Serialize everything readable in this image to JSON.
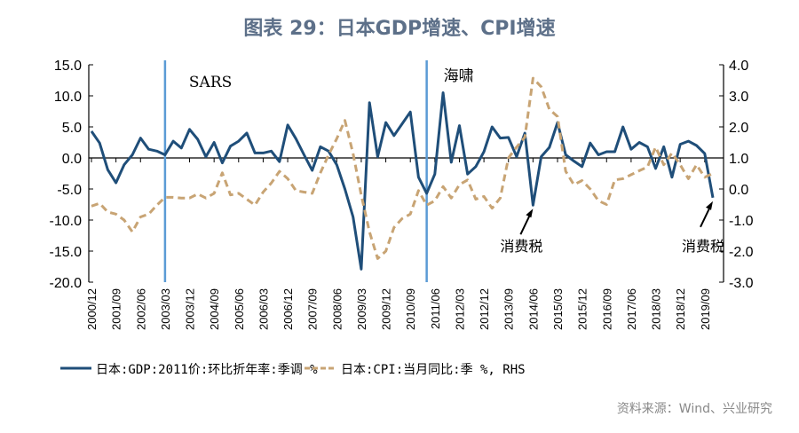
{
  "title": "图表 29：日本GDP增速、CPI增速",
  "source": "资料来源：Wind、兴业研究",
  "chart_data": {
    "type": "line",
    "categories": [
      "2000/12",
      "2001/03",
      "2001/06",
      "2001/09",
      "2001/12",
      "2002/03",
      "2002/06",
      "2002/09",
      "2002/12",
      "2003/03",
      "2003/06",
      "2003/09",
      "2003/12",
      "2004/03",
      "2004/06",
      "2004/09",
      "2004/12",
      "2005/03",
      "2005/06",
      "2005/09",
      "2005/12",
      "2006/03",
      "2006/06",
      "2006/09",
      "2006/12",
      "2007/03",
      "2007/06",
      "2007/09",
      "2007/12",
      "2008/03",
      "2008/06",
      "2008/09",
      "2008/12",
      "2009/03",
      "2009/06",
      "2009/09",
      "2009/12",
      "2010/03",
      "2010/06",
      "2010/09",
      "2010/12",
      "2011/03",
      "2011/06",
      "2011/09",
      "2011/12",
      "2012/03",
      "2012/06",
      "2012/09",
      "2012/12",
      "2013/03",
      "2013/06",
      "2013/09",
      "2013/12",
      "2014/03",
      "2014/06",
      "2014/09",
      "2014/12",
      "2015/03",
      "2015/06",
      "2015/09",
      "2015/12",
      "2016/03",
      "2016/06",
      "2016/09",
      "2016/12",
      "2017/03",
      "2017/06",
      "2017/09",
      "2017/12",
      "2018/03",
      "2018/06",
      "2018/09",
      "2018/12",
      "2019/03",
      "2019/06",
      "2019/09",
      "2019/12"
    ],
    "tick_every": 3,
    "series": [
      {
        "name": "日本:GDP:2011价:环比折年率:季调 %",
        "axis": "left",
        "color": "#1f4e79",
        "style": "solid",
        "values": [
          4.3,
          2.4,
          -1.9,
          -4.0,
          -1.1,
          0.5,
          3.2,
          1.4,
          1.1,
          0.5,
          2.7,
          1.6,
          4.6,
          3.0,
          0.2,
          2.5,
          -0.8,
          1.9,
          2.7,
          4.0,
          0.8,
          0.8,
          1.1,
          -0.6,
          5.3,
          3.1,
          0.5,
          -2.0,
          1.8,
          1.1,
          -1.1,
          -5.0,
          -9.5,
          -17.9,
          8.9,
          0.2,
          5.7,
          3.6,
          5.5,
          7.4,
          -3.1,
          -5.7,
          -2.6,
          10.5,
          -0.7,
          5.2,
          -2.6,
          -1.4,
          1.0,
          5.0,
          3.2,
          3.3,
          0.2,
          4.0,
          -7.6,
          0.2,
          1.7,
          5.7,
          0.5,
          -0.5,
          -1.4,
          2.4,
          0.5,
          1.0,
          1.0,
          5.0,
          1.4,
          2.5,
          1.8,
          -1.7,
          1.8,
          -3.1,
          2.2,
          2.7,
          2.0,
          0.7,
          -6.4
        ]
      },
      {
        "name": "日本:CPI:当月同比:季 %, RHS",
        "axis": "right",
        "color": "#c8a474",
        "style": "dashed",
        "values": [
          -0.55,
          -0.46,
          -0.74,
          -0.81,
          -1.0,
          -1.38,
          -0.9,
          -0.81,
          -0.52,
          -0.27,
          -0.27,
          -0.29,
          -0.29,
          -0.16,
          -0.29,
          -0.14,
          0.52,
          -0.19,
          -0.14,
          -0.33,
          -0.52,
          -0.1,
          0.19,
          0.57,
          0.33,
          -0.05,
          -0.1,
          -0.14,
          0.52,
          1.1,
          1.62,
          2.21,
          1.14,
          -0.19,
          -1.38,
          -2.24,
          -2.0,
          -1.24,
          -0.95,
          -0.81,
          -0.05,
          -0.52,
          -0.38,
          0.08,
          -0.29,
          0.14,
          0.29,
          -0.33,
          -0.24,
          -0.62,
          -0.29,
          1.0,
          1.35,
          1.67,
          3.57,
          3.29,
          2.57,
          2.33,
          0.57,
          0.14,
          0.27,
          0.0,
          -0.38,
          -0.5,
          0.29,
          0.33,
          0.46,
          0.59,
          0.71,
          1.35,
          0.78,
          1.16,
          0.78,
          0.33,
          0.78,
          0.38,
          0.5
        ]
      }
    ],
    "y_left": {
      "range": [
        -20,
        15
      ],
      "ticks": [
        15,
        10,
        5,
        0,
        -5,
        -10,
        -15,
        -20
      ]
    },
    "y_right": {
      "range": [
        -3,
        4
      ],
      "ticks": [
        4,
        3,
        2,
        1,
        0,
        -1,
        -2,
        -3
      ]
    },
    "event_lines": [
      {
        "at": "2003/03",
        "label": "SARS",
        "color": "#5b9bd5"
      },
      {
        "at": "2011/03",
        "label": "海啸",
        "color": "#5b9bd5"
      }
    ],
    "annotations": [
      {
        "at": "2014/06",
        "label": "消费税"
      },
      {
        "at": "2019/12",
        "label": "消费税"
      }
    ],
    "legend_position": "bottom",
    "grid": false
  }
}
